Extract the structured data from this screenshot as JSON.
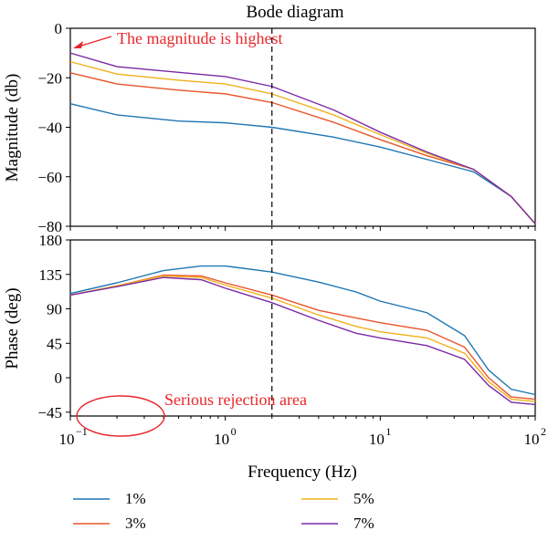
{
  "chart_data": [
    {
      "type": "line",
      "title": "Bode diagram",
      "xlabel": "",
      "ylabel": "Magnitude (db)",
      "xscale": "log",
      "xlim": [
        0.1,
        100
      ],
      "ylim": [
        -80,
        0
      ],
      "yticks": [
        "0",
        "−20",
        "−40",
        "−60",
        "−80"
      ],
      "ytick_values": [
        0,
        -20,
        -40,
        -60,
        -80
      ],
      "vline_x": 2,
      "annotation": "The magnitude is highest",
      "series": [
        {
          "name": "1%",
          "color": "#1f77b4",
          "points": [
            [
              0.1,
              -30.5
            ],
            [
              0.2,
              -35
            ],
            [
              0.5,
              -37.5
            ],
            [
              1,
              -38.2
            ],
            [
              2,
              -40
            ],
            [
              5,
              -44
            ],
            [
              10,
              -48
            ],
            [
              20,
              -53
            ],
            [
              40,
              -58
            ],
            [
              70,
              -68
            ],
            [
              100,
              -79
            ]
          ]
        },
        {
          "name": "3%",
          "color": "#e8562b",
          "points": [
            [
              0.1,
              -18
            ],
            [
              0.2,
              -22.5
            ],
            [
              0.5,
              -25
            ],
            [
              1,
              -26.5
            ],
            [
              2,
              -30
            ],
            [
              5,
              -38
            ],
            [
              10,
              -45
            ],
            [
              20,
              -51.5
            ],
            [
              40,
              -57
            ],
            [
              70,
              -68
            ],
            [
              100,
              -79
            ]
          ]
        },
        {
          "name": "5%",
          "color": "#f0b11c",
          "points": [
            [
              0.1,
              -13.5
            ],
            [
              0.2,
              -18.5
            ],
            [
              0.5,
              -21
            ],
            [
              1,
              -22.5
            ],
            [
              2,
              -26.5
            ],
            [
              5,
              -35
            ],
            [
              10,
              -43
            ],
            [
              20,
              -50.5
            ],
            [
              40,
              -57
            ],
            [
              70,
              -68
            ],
            [
              100,
              -79
            ]
          ]
        },
        {
          "name": "7%",
          "color": "#7b2aa5",
          "points": [
            [
              0.1,
              -10
            ],
            [
              0.2,
              -15.5
            ],
            [
              0.5,
              -17.8
            ],
            [
              1,
              -19.5
            ],
            [
              2,
              -23.5
            ],
            [
              5,
              -33
            ],
            [
              10,
              -42
            ],
            [
              20,
              -50
            ],
            [
              40,
              -57
            ],
            [
              70,
              -68
            ],
            [
              100,
              -79
            ]
          ]
        }
      ]
    },
    {
      "type": "line",
      "title": "",
      "xlabel": "Frequency (Hz)",
      "ylabel": "Phase (deg)",
      "xscale": "log",
      "xlim": [
        0.1,
        100
      ],
      "ylim": [
        -50,
        180
      ],
      "yticks": [
        "180",
        "135",
        "90",
        "45",
        "0",
        "−45"
      ],
      "ytick_values": [
        180,
        135,
        90,
        45,
        0,
        -45
      ],
      "xticks": [
        "10",
        "10",
        "10",
        "10"
      ],
      "xtick_exponents": [
        "−1",
        "0",
        "1",
        "2"
      ],
      "xtick_values": [
        0.1,
        1,
        10,
        100
      ],
      "vline_x": 2,
      "annotation": "Serious rejection area",
      "ellipse_center": [
        0.2,
        -45
      ],
      "series": [
        {
          "name": "1%",
          "color": "#1f77b4",
          "points": [
            [
              0.1,
              110
            ],
            [
              0.2,
              124
            ],
            [
              0.4,
              140
            ],
            [
              0.7,
              146
            ],
            [
              1,
              146
            ],
            [
              2,
              138
            ],
            [
              4,
              125
            ],
            [
              7,
              112
            ],
            [
              10,
              100
            ],
            [
              20,
              85
            ],
            [
              35,
              55
            ],
            [
              50,
              10
            ],
            [
              70,
              -15
            ],
            [
              100,
              -22
            ]
          ]
        },
        {
          "name": "3%",
          "color": "#e8562b",
          "points": [
            [
              0.1,
              108
            ],
            [
              0.2,
              120
            ],
            [
              0.4,
              134
            ],
            [
              0.7,
              133
            ],
            [
              1,
              124
            ],
            [
              2,
              108
            ],
            [
              4,
              88
            ],
            [
              7,
              78
            ],
            [
              10,
              72
            ],
            [
              20,
              62
            ],
            [
              35,
              40
            ],
            [
              50,
              0
            ],
            [
              70,
              -25
            ],
            [
              100,
              -28
            ]
          ]
        },
        {
          "name": "5%",
          "color": "#f0b11c",
          "points": [
            [
              0.1,
              108
            ],
            [
              0.2,
              120
            ],
            [
              0.4,
              133
            ],
            [
              0.7,
              131
            ],
            [
              1,
              121
            ],
            [
              2,
              104
            ],
            [
              4,
              82
            ],
            [
              7,
              67
            ],
            [
              10,
              60
            ],
            [
              20,
              52
            ],
            [
              35,
              32
            ],
            [
              50,
              -5
            ],
            [
              70,
              -28
            ],
            [
              100,
              -31
            ]
          ]
        },
        {
          "name": "7%",
          "color": "#7b2aa5",
          "points": [
            [
              0.1,
              108
            ],
            [
              0.2,
              119
            ],
            [
              0.4,
              131
            ],
            [
              0.7,
              128
            ],
            [
              1,
              117
            ],
            [
              2,
              98
            ],
            [
              4,
              75
            ],
            [
              7,
              58
            ],
            [
              10,
              52
            ],
            [
              20,
              42
            ],
            [
              35,
              24
            ],
            [
              50,
              -10
            ],
            [
              70,
              -32
            ],
            [
              100,
              -35
            ]
          ]
        }
      ]
    }
  ],
  "legend": [
    {
      "label": "1%",
      "color": "#1f77b4"
    },
    {
      "label": "5%",
      "color": "#f0b11c"
    },
    {
      "label": "3%",
      "color": "#e8562b"
    },
    {
      "label": "7%",
      "color": "#7b2aa5"
    }
  ]
}
